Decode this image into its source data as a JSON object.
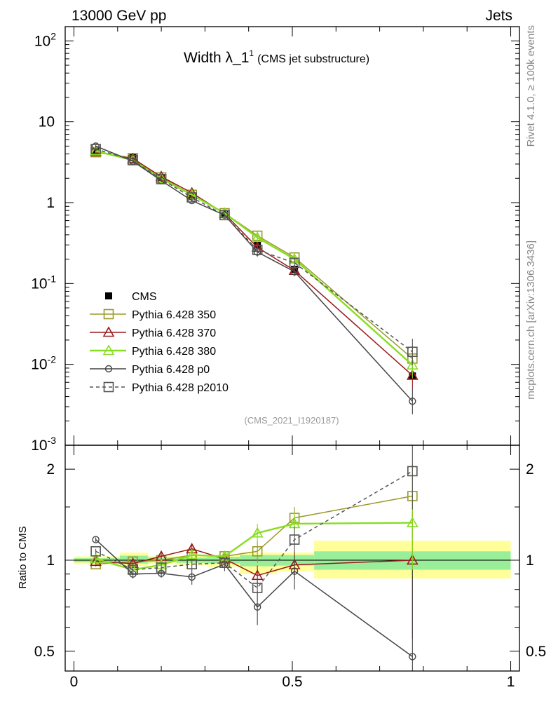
{
  "header": {
    "energy_label": "13000 GeV pp",
    "process_label": "Jets"
  },
  "side_text": {
    "rivet": "Rivet 4.1.0, ≥ 100k events",
    "site": "mcplots.cern.ch [arXiv:1306.3436]"
  },
  "analysis_id": "(CMS_2021_I1920187)",
  "colors": {
    "cms": "#000000",
    "p350": "#9a9a2a",
    "p370": "#9a1a1a",
    "p380": "#88dd22",
    "p0": "#444444",
    "p2010": "#555555",
    "band_inner": "#99ee99",
    "band_outer": "#ffff99"
  },
  "chart_data": [
    {
      "type": "line",
      "panel": "main",
      "title": "Width λ_1",
      "title_sup": "1",
      "subtitle": "(CMS jet substructure)",
      "yscale": "log",
      "ylim": [
        0.001,
        150
      ],
      "xlim": [
        -0.02,
        1.02
      ],
      "ytick_labels": [
        "10^-3",
        "10^-2",
        "10^-1",
        "1",
        "10",
        "10^2"
      ],
      "x": [
        0.05,
        0.135,
        0.2,
        0.27,
        0.345,
        0.42,
        0.505,
        0.775
      ],
      "series": [
        {
          "name": "CMS",
          "key": "cms",
          "marker": "filled-square",
          "values": [
            4.3,
            3.6,
            2.05,
            1.2,
            0.72,
            0.3,
            0.15,
            0.0072
          ]
        },
        {
          "name": "Pythia 6.428 350",
          "key": "p350",
          "marker": "open-square",
          "values": [
            4.2,
            3.55,
            2.05,
            1.25,
            0.74,
            0.39,
            0.21,
            0.0118
          ]
        },
        {
          "name": "Pythia 6.428 370",
          "key": "p370",
          "marker": "open-triangle",
          "values": [
            4.25,
            3.5,
            2.1,
            1.32,
            0.73,
            0.28,
            0.145,
            0.0073
          ]
        },
        {
          "name": "Pythia 6.428 380",
          "key": "p380",
          "marker": "open-triangle",
          "values": [
            4.35,
            3.35,
            1.98,
            1.25,
            0.74,
            0.37,
            0.2,
            0.0098
          ]
        },
        {
          "name": "Pythia 6.428 p0",
          "key": "p0",
          "marker": "open-circle",
          "values": [
            5.0,
            3.25,
            1.87,
            1.06,
            0.7,
            0.245,
            0.14,
            0.0035
          ]
        },
        {
          "name": "Pythia 6.428 p2010",
          "key": "p2010",
          "marker": "open-square",
          "dashed": true,
          "values": [
            4.6,
            3.35,
            1.95,
            1.16,
            0.7,
            0.26,
            0.18,
            0.0143
          ]
        }
      ]
    },
    {
      "type": "line",
      "panel": "ratio",
      "ylabel": "Ratio to CMS",
      "yscale": "log",
      "ylim": [
        0.43,
        2.4
      ],
      "xlim": [
        -0.02,
        1.02
      ],
      "yticks": [
        0.5,
        1,
        2
      ],
      "ytick_labels": [
        "0.5",
        "1",
        "2"
      ],
      "xticks": [
        0,
        0.5,
        1
      ],
      "xtick_labels": [
        "0",
        "0.5",
        "1"
      ],
      "x": [
        0.05,
        0.135,
        0.2,
        0.27,
        0.345,
        0.42,
        0.505,
        0.775
      ],
      "uncertainty_bands": [
        {
          "xmin": 0.0,
          "xmax": 0.105,
          "inner": [
            0.985,
            1.015
          ],
          "outer": [
            0.97,
            1.03
          ]
        },
        {
          "xmin": 0.105,
          "xmax": 0.17,
          "inner": [
            0.975,
            1.035
          ],
          "outer": [
            0.955,
            1.06
          ]
        },
        {
          "xmin": 0.17,
          "xmax": 0.235,
          "inner": [
            0.985,
            1.02
          ],
          "outer": [
            0.97,
            1.03
          ]
        },
        {
          "xmin": 0.235,
          "xmax": 0.305,
          "inner": [
            0.98,
            1.02
          ],
          "outer": [
            0.96,
            1.035
          ]
        },
        {
          "xmin": 0.305,
          "xmax": 0.38,
          "inner": [
            0.975,
            1.025
          ],
          "outer": [
            0.95,
            1.04
          ]
        },
        {
          "xmin": 0.38,
          "xmax": 0.465,
          "inner": [
            0.955,
            1.04
          ],
          "outer": [
            0.9,
            1.06
          ]
        },
        {
          "xmin": 0.465,
          "xmax": 0.55,
          "inner": [
            0.96,
            1.04
          ],
          "outer": [
            0.92,
            1.06
          ]
        },
        {
          "xmin": 0.55,
          "xmax": 1.0,
          "inner": [
            0.93,
            1.07
          ],
          "outer": [
            0.87,
            1.16
          ]
        }
      ],
      "series": [
        {
          "name": "Pythia 6.428 350",
          "key": "p350",
          "marker": "open-square",
          "values": [
            0.97,
            0.99,
            1.0,
            1.04,
            1.03,
            1.07,
            1.38,
            1.63
          ],
          "errors": [
            0.02,
            0.03,
            0.03,
            0.04,
            0.04,
            0.09,
            0.12,
            0.45
          ]
        },
        {
          "name": "Pythia 6.428 370",
          "key": "p370",
          "marker": "open-triangle",
          "values": [
            0.99,
            0.975,
            1.03,
            1.09,
            1.01,
            0.89,
            0.965,
            1.0
          ],
          "errors": [
            0.02,
            0.03,
            0.04,
            0.04,
            0.04,
            0.07,
            0.1,
            0.45
          ]
        },
        {
          "name": "Pythia 6.428 380",
          "key": "p380",
          "marker": "open-triangle",
          "values": [
            1.01,
            0.93,
            0.965,
            1.04,
            1.03,
            1.23,
            1.32,
            1.33
          ],
          "errors": [
            0.02,
            0.03,
            0.03,
            0.04,
            0.04,
            0.09,
            0.12,
            0.45
          ]
        },
        {
          "name": "Pythia 6.428 p0",
          "key": "p0",
          "marker": "open-circle",
          "values": [
            1.17,
            0.9,
            0.905,
            0.88,
            0.97,
            0.7,
            0.92,
            0.48
          ],
          "errors": [
            0.02,
            0.03,
            0.03,
            0.05,
            0.05,
            0.09,
            0.12,
            0.45
          ]
        },
        {
          "name": "Pythia 6.428 p2010",
          "key": "p2010",
          "marker": "open-square",
          "dashed": true,
          "values": [
            1.07,
            0.93,
            0.945,
            0.97,
            0.98,
            0.81,
            1.17,
            1.97
          ],
          "errors": [
            0.02,
            0.03,
            0.03,
            0.04,
            0.04,
            0.08,
            0.12,
            0.5
          ]
        }
      ]
    }
  ]
}
